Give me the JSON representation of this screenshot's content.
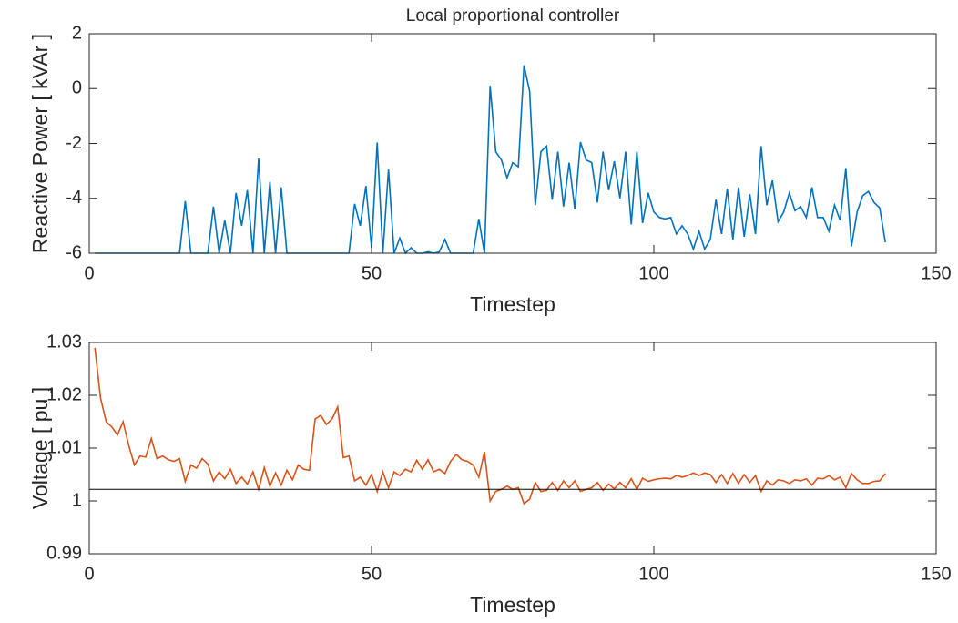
{
  "chart_data": [
    {
      "type": "line",
      "title": "Local proportional controller",
      "xlabel": "Timestep",
      "ylabel": "Reactive Power [ kVAr ]",
      "xlim": [
        0,
        150
      ],
      "xticks": [
        0,
        50,
        100,
        150
      ],
      "ylim": [
        -6,
        2
      ],
      "yticks": [
        -6,
        -4,
        -2,
        0,
        2
      ],
      "x": [
        1,
        2,
        3,
        4,
        5,
        6,
        7,
        8,
        9,
        10,
        11,
        12,
        13,
        14,
        15,
        16,
        17,
        18,
        19,
        20,
        21,
        22,
        23,
        24,
        25,
        26,
        27,
        28,
        29,
        30,
        31,
        32,
        33,
        34,
        35,
        36,
        37,
        38,
        39,
        40,
        41,
        42,
        43,
        44,
        45,
        46,
        47,
        48,
        49,
        50,
        51,
        52,
        53,
        54,
        55,
        56,
        57,
        58,
        59,
        60,
        61,
        62,
        63,
        64,
        65,
        66,
        67,
        68,
        69,
        70,
        71,
        72,
        73,
        74,
        75,
        76,
        77,
        78,
        79,
        80,
        81,
        82,
        83,
        84,
        85,
        86,
        87,
        88,
        89,
        90,
        91,
        92,
        93,
        94,
        95,
        96,
        97,
        98,
        99,
        100,
        101,
        102,
        103,
        104,
        105,
        106,
        107,
        108,
        109,
        110,
        111,
        112,
        113,
        114,
        115,
        116,
        117,
        118,
        119,
        120,
        121,
        122,
        123,
        124,
        125,
        126,
        127,
        128,
        129,
        130,
        131,
        132,
        133,
        134,
        135,
        136,
        137,
        138,
        139,
        140,
        141
      ],
      "series": [
        {
          "color": "#0072BD",
          "values": [
            -6,
            -6,
            -6,
            -6,
            -6,
            -6,
            -6,
            -6,
            -6,
            -6,
            -6,
            -6,
            -6,
            -6,
            -6,
            -6,
            -4.1,
            -6,
            -6,
            -6,
            -6,
            -4.3,
            -6,
            -4.8,
            -6,
            -3.8,
            -5,
            -3.7,
            -6,
            -2.55,
            -6,
            -3.4,
            -6,
            -3.6,
            -6,
            -6,
            -6,
            -6,
            -6,
            -6,
            -6,
            -6,
            -6,
            -6,
            -6,
            -6,
            -4.2,
            -5,
            -3.55,
            -5.8,
            -1.97,
            -6,
            -2.95,
            -6,
            -5.45,
            -6,
            -5.8,
            -6,
            -6,
            -5.95,
            -6,
            -5.95,
            -5.5,
            -6,
            -6,
            -6,
            -6,
            -6,
            -4.75,
            -6,
            0.1,
            -2.3,
            -2.6,
            -3.25,
            -2.7,
            -2.85,
            0.85,
            -0.1,
            -4.25,
            -2.3,
            -2.1,
            -4.05,
            -2.3,
            -4.3,
            -2.7,
            -4.4,
            -1.95,
            -2.6,
            -2.7,
            -4.15,
            -2.3,
            -3.7,
            -2.65,
            -4,
            -2.3,
            -4.95,
            -2.3,
            -4.9,
            -3.8,
            -4.5,
            -4.7,
            -4.75,
            -4.7,
            -5.3,
            -5,
            -5.3,
            -5.85,
            -5.2,
            -5.85,
            -5.5,
            -4.05,
            -5.3,
            -3.65,
            -5.5,
            -3.6,
            -5.4,
            -3.85,
            -5.3,
            -2.1,
            -4.25,
            -3.35,
            -4.85,
            -4.5,
            -3.8,
            -4.45,
            -4.3,
            -4.7,
            -3.6,
            -4.7,
            -4.7,
            -5.2,
            -4.25,
            -4.8,
            -2.9,
            -5.75,
            -4.5,
            -3.9,
            -3.75,
            -4.15,
            -4.35,
            -5.6
          ]
        }
      ]
    },
    {
      "type": "line",
      "xlabel": "Timestep",
      "ylabel": "Voltage [ pu ]",
      "xlim": [
        0,
        150
      ],
      "xticks": [
        0,
        50,
        100,
        150
      ],
      "ylim": [
        0.99,
        1.03
      ],
      "yticks": [
        0.99,
        1,
        1.01,
        1.02,
        1.03
      ],
      "x": [
        1,
        2,
        3,
        4,
        5,
        6,
        7,
        8,
        9,
        10,
        11,
        12,
        13,
        14,
        15,
        16,
        17,
        18,
        19,
        20,
        21,
        22,
        23,
        24,
        25,
        26,
        27,
        28,
        29,
        30,
        31,
        32,
        33,
        34,
        35,
        36,
        37,
        38,
        39,
        40,
        41,
        42,
        43,
        44,
        45,
        46,
        47,
        48,
        49,
        50,
        51,
        52,
        53,
        54,
        55,
        56,
        57,
        58,
        59,
        60,
        61,
        62,
        63,
        64,
        65,
        66,
        67,
        68,
        69,
        70,
        71,
        72,
        73,
        74,
        75,
        76,
        77,
        78,
        79,
        80,
        81,
        82,
        83,
        84,
        85,
        86,
        87,
        88,
        89,
        90,
        91,
        92,
        93,
        94,
        95,
        96,
        97,
        98,
        99,
        100,
        101,
        102,
        103,
        104,
        105,
        106,
        107,
        108,
        109,
        110,
        111,
        112,
        113,
        114,
        115,
        116,
        117,
        118,
        119,
        120,
        121,
        122,
        123,
        124,
        125,
        126,
        127,
        128,
        129,
        130,
        131,
        132,
        133,
        134,
        135,
        136,
        137,
        138,
        139,
        140,
        141
      ],
      "series": [
        {
          "color": "#D95319",
          "values": [
            1.029,
            1.0195,
            1.015,
            1.014,
            1.0125,
            1.015,
            1.0105,
            1.0068,
            1.0085,
            1.0083,
            1.0118,
            1.008,
            1.0085,
            1.0078,
            1.0075,
            1.008,
            1.0037,
            1.0068,
            1.0062,
            1.008,
            1.007,
            1.0038,
            1.0055,
            1.0042,
            1.006,
            1.0033,
            1.0045,
            1.0032,
            1.0055,
            1.0022,
            1.0063,
            1.0028,
            1.0053,
            1.003,
            1.0058,
            1.004,
            1.0068,
            1.006,
            1.0058,
            1.0155,
            1.0162,
            1.0145,
            1.0155,
            1.0178,
            1.0082,
            1.0085,
            1.0038,
            1.0045,
            1.003,
            1.005,
            1.0018,
            1.0055,
            1.0025,
            1.0055,
            1.0048,
            1.006,
            1.0055,
            1.0077,
            1.006,
            1.0078,
            1.0055,
            1.006,
            1.0052,
            1.0075,
            1.0088,
            1.0078,
            1.0075,
            1.0068,
            1.0045,
            1.0093,
            1,
            1.0018,
            1.0022,
            1.0028,
            1.0022,
            1.0025,
            0.9995,
            1.0003,
            1.0035,
            1.0018,
            1.002,
            1.0035,
            1.002,
            1.0038,
            1.0025,
            1.0038,
            1.0018,
            1.0022,
            1.0025,
            1.0035,
            1.002,
            1.0032,
            1.0023,
            1.0035,
            1.0025,
            1.0042,
            1.0022,
            1.0043,
            1.0037,
            1.004,
            1.0042,
            1.0043,
            1.0042,
            1.0048,
            1.0045,
            1.0048,
            1.0053,
            1.0048,
            1.0053,
            1.005,
            1.0035,
            1.005,
            1.0033,
            1.0052,
            1.0033,
            1.005,
            1.0035,
            1.0048,
            1.0018,
            1.0038,
            1.003,
            1.004,
            1.0038,
            1.0033,
            1.004,
            1.0038,
            1.0042,
            1.003,
            1.0043,
            1.0042,
            1.0048,
            1.004,
            1.0045,
            1.0025,
            1.0052,
            1.004,
            1.0033,
            1.0033,
            1.0037,
            1.0038,
            1.0052
          ]
        }
      ],
      "reference_line": {
        "color": "#000000",
        "x": [
          0,
          150
        ],
        "values": [
          1.0022,
          1.0022
        ]
      }
    }
  ]
}
